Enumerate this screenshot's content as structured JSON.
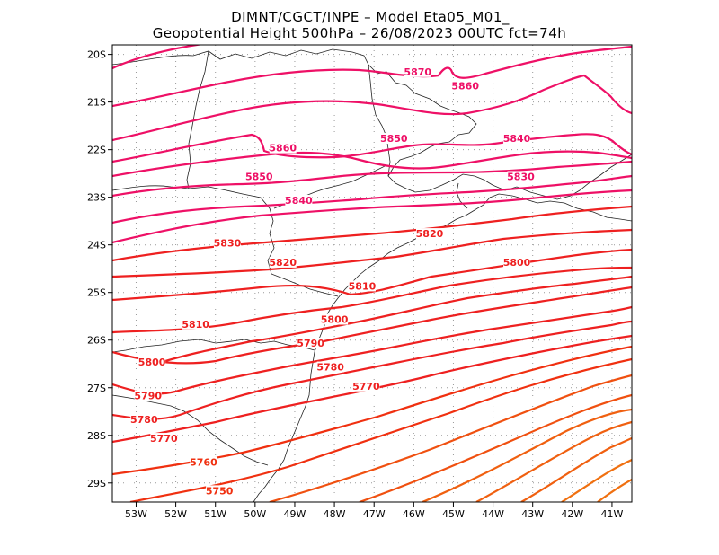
{
  "title": {
    "line1": "DIMNT/CGCT/INPE –  Model Eta05_M01_",
    "line2": "Geopotential Height 500hPa –  26/08/2023 00UTC fct=74h"
  },
  "map": {
    "lon_range": [
      -53.6,
      -40.5
    ],
    "lat_range": [
      -29.4,
      -19.8
    ],
    "lon_ticks": [
      {
        "value": -53,
        "label": "53W"
      },
      {
        "value": -52,
        "label": "52W"
      },
      {
        "value": -51,
        "label": "51W"
      },
      {
        "value": -50,
        "label": "50W"
      },
      {
        "value": -49,
        "label": "49W"
      },
      {
        "value": -48,
        "label": "48W"
      },
      {
        "value": -47,
        "label": "47W"
      },
      {
        "value": -46,
        "label": "46W"
      },
      {
        "value": -45,
        "label": "45W"
      },
      {
        "value": -44,
        "label": "44W"
      },
      {
        "value": -43,
        "label": "43W"
      },
      {
        "value": -42,
        "label": "42W"
      },
      {
        "value": -41,
        "label": "41W"
      }
    ],
    "lat_ticks": [
      {
        "value": -20,
        "label": "20S"
      },
      {
        "value": -21,
        "label": "21S"
      },
      {
        "value": -22,
        "label": "22S"
      },
      {
        "value": -23,
        "label": "23S"
      },
      {
        "value": -24,
        "label": "24S"
      },
      {
        "value": -25,
        "label": "25S"
      },
      {
        "value": -26,
        "label": "26S"
      },
      {
        "value": -27,
        "label": "27S"
      },
      {
        "value": -28,
        "label": "28S"
      },
      {
        "value": -29,
        "label": "29S"
      }
    ],
    "grid": "dotted",
    "colors": {
      "high": "#ee1066",
      "mid": "#ee2020",
      "low": "#f06010",
      "coast": "#222222"
    }
  },
  "contour_labels": [
    {
      "text": "5870",
      "lon": -45.9,
      "lat": -20.4,
      "color": "#ee1066"
    },
    {
      "text": "5860",
      "lon": -44.7,
      "lat": -20.7,
      "color": "#ee1066"
    },
    {
      "text": "5860",
      "lon": -49.3,
      "lat": -22.0,
      "color": "#ee1066"
    },
    {
      "text": "5850",
      "lon": -46.5,
      "lat": -21.8,
      "color": "#ee1066"
    },
    {
      "text": "5850",
      "lon": -49.9,
      "lat": -22.6,
      "color": "#ee1066"
    },
    {
      "text": "5840",
      "lon": -43.4,
      "lat": -21.8,
      "color": "#ee1066"
    },
    {
      "text": "5840",
      "lon": -48.9,
      "lat": -23.1,
      "color": "#ee1066"
    },
    {
      "text": "5830",
      "lon": -43.3,
      "lat": -22.6,
      "color": "#ee1066"
    },
    {
      "text": "5830",
      "lon": -50.7,
      "lat": -24.0,
      "color": "#ee2020"
    },
    {
      "text": "5820",
      "lon": -45.6,
      "lat": -23.8,
      "color": "#ee2020"
    },
    {
      "text": "5820",
      "lon": -49.3,
      "lat": -24.4,
      "color": "#ee2020"
    },
    {
      "text": "5810",
      "lon": -47.3,
      "lat": -24.9,
      "color": "#ee2020"
    },
    {
      "text": "5810",
      "lon": -51.5,
      "lat": -25.7,
      "color": "#ee2020"
    },
    {
      "text": "5800",
      "lon": -43.4,
      "lat": -24.4,
      "color": "#ee2020"
    },
    {
      "text": "5800",
      "lon": -48.0,
      "lat": -25.6,
      "color": "#ee2020"
    },
    {
      "text": "5800",
      "lon": -52.6,
      "lat": -26.5,
      "color": "#ee2020"
    },
    {
      "text": "5790",
      "lon": -48.6,
      "lat": -26.1,
      "color": "#ee2020"
    },
    {
      "text": "5790",
      "lon": -52.7,
      "lat": -27.2,
      "color": "#ee2020"
    },
    {
      "text": "5780",
      "lon": -48.1,
      "lat": -26.6,
      "color": "#ee2020"
    },
    {
      "text": "5780",
      "lon": -52.8,
      "lat": -27.7,
      "color": "#ee2020"
    },
    {
      "text": "5770",
      "lon": -47.2,
      "lat": -27.0,
      "color": "#ee2020"
    },
    {
      "text": "5770",
      "lon": -52.3,
      "lat": -28.1,
      "color": "#ee2020"
    },
    {
      "text": "5760",
      "lon": -51.3,
      "lat": -28.6,
      "color": "#f03010"
    },
    {
      "text": "5750",
      "lon": -50.9,
      "lat": -29.2,
      "color": "#f03010"
    }
  ]
}
